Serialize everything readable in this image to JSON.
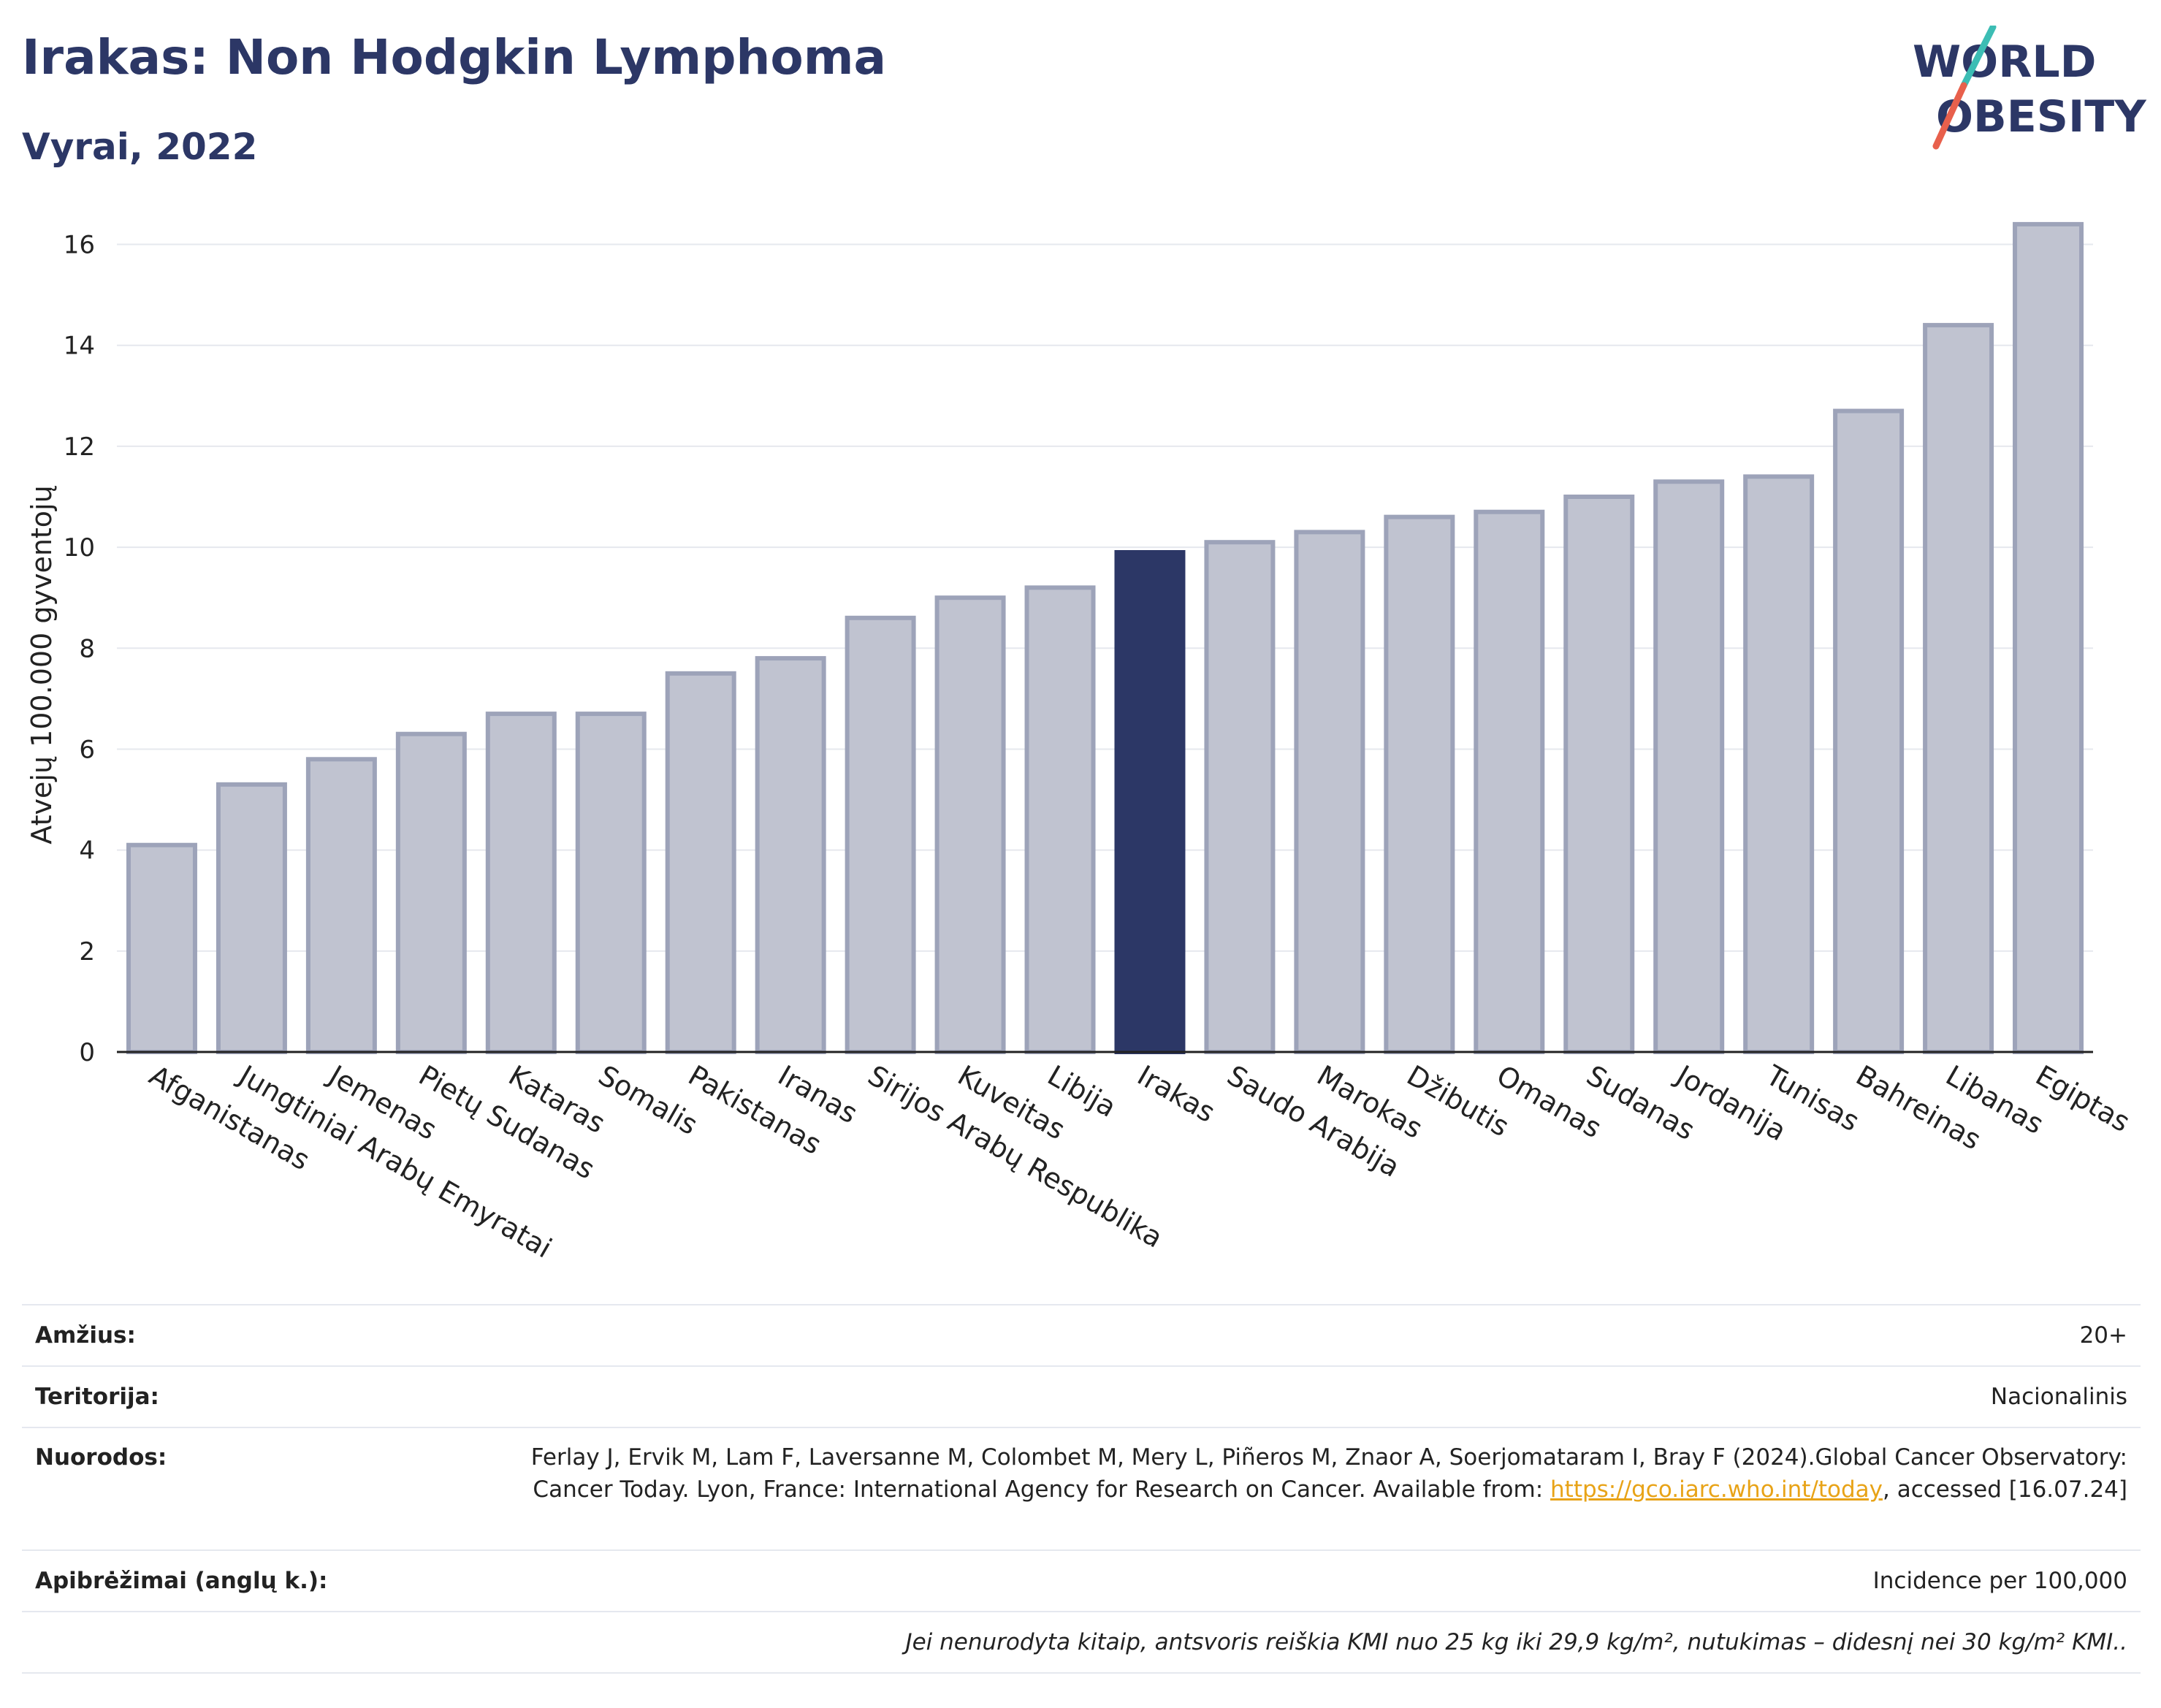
{
  "header": {
    "title": "Irakas: Non Hodgkin Lymphoma",
    "subtitle": "Vyrai, 2022"
  },
  "logo": {
    "line1": "WORLD",
    "line2": "OBESITY",
    "slash_colors": [
      "#3cbdb4",
      "#e8604c"
    ],
    "text_color": "#2c3766"
  },
  "chart_data": {
    "type": "bar",
    "ylabel": "Atvejų 100.000 gyventojų",
    "ylim": [
      0,
      16.5
    ],
    "yticks": [
      0,
      2,
      4,
      6,
      8,
      10,
      12,
      14,
      16
    ],
    "grid": true,
    "categories": [
      "Afganistanas",
      "Jungtiniai Arabų Emyratai",
      "Jemenas",
      "Pietų Sudanas",
      "Kataras",
      "Somalis",
      "Pakistanas",
      "Iranas",
      "Sirijos Arabų Respublika",
      "Kuveitas",
      "Libija",
      "Irakas",
      "Saudo Arabija",
      "Marokas",
      "Džibutis",
      "Omanas",
      "Sudanas",
      "Jordanija",
      "Tunisas",
      "Bahreinas",
      "Libanas",
      "Egiptas"
    ],
    "values": [
      4.1,
      5.3,
      5.8,
      6.3,
      6.7,
      6.7,
      7.5,
      7.8,
      8.6,
      9.0,
      9.2,
      9.9,
      10.1,
      10.3,
      10.6,
      10.7,
      11.0,
      11.3,
      11.4,
      12.7,
      14.4,
      16.4
    ],
    "highlight": "Irakas",
    "colors": {
      "bar": "#c0c3d0",
      "bar_border": "#9da3b9",
      "highlight": "#2c3766"
    }
  },
  "info": {
    "age_label": "Amžius:",
    "age_value": "20+",
    "territory_label": "Teritorija:",
    "territory_value": "Nacionalinis",
    "refs_label": "Nuorodos:",
    "refs_text": "Ferlay J, Ervik M, Lam F, Laversanne M, Colombet M, Mery L, Piñeros M, Znaor A, Soerjomataram I, Bray F (2024).Global Cancer Observatory: Cancer Today. Lyon, France: International Agency for Research on Cancer. Available from: ",
    "refs_link": "https://gco.iarc.who.int/today",
    "refs_tail": ", accessed [16.07.24]",
    "defs_label": "Apibrėžimai (anglų k.):",
    "defs_value": "Incidence per 100,000",
    "note": "Jei nenurodyta kitaip, antsvoris reiškia KMI nuo 25 kg iki 29,9 kg/m², nutukimas – didesnį nei 30 kg/m² KMI.."
  }
}
